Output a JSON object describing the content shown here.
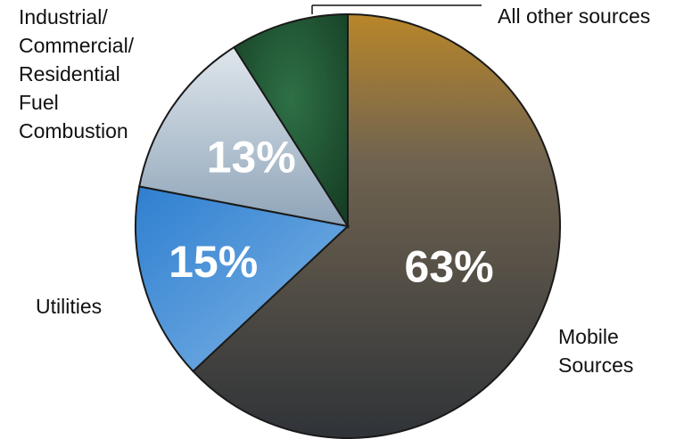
{
  "chart_data": {
    "type": "pie",
    "categories": [
      "Mobile Sources",
      "Utilities",
      "Industrial/ Commercial/ Residential Fuel Combustion",
      "All other sources"
    ],
    "labels": [
      "Mobile\nSources",
      "Utilities",
      "Industrial/\nCommercial/\nResidential\nFuel\nCombustion",
      "All other sources"
    ],
    "values": [
      63,
      15,
      13,
      9
    ],
    "value_labels": [
      "63%",
      "15%",
      "13%",
      ""
    ],
    "colors": [
      "#4a4f55",
      "#3f86c9",
      "#b9c7d4",
      "#1f5a34"
    ],
    "title": "",
    "legend": "none"
  }
}
